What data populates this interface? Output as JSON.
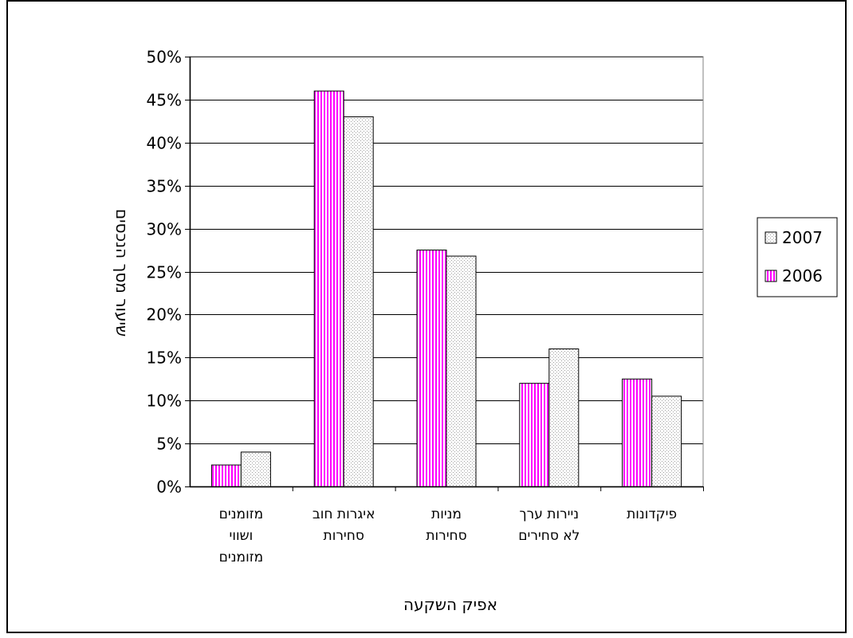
{
  "chart_data": {
    "type": "bar",
    "categories": [
      [
        "מזומנים",
        "ושווי",
        "מזומנים"
      ],
      [
        "איגרות חוב",
        "סחירות"
      ],
      [
        "מניות",
        "סחירות"
      ],
      [
        "ניירות ערך",
        "לא סחירים"
      ],
      [
        "פיקדונות"
      ]
    ],
    "series": [
      {
        "name": "2006",
        "values": [
          2.5,
          46,
          27.5,
          12,
          12.5
        ],
        "color": "#ff00ff",
        "pattern": "vertical-stripes"
      },
      {
        "name": "2007",
        "values": [
          4,
          43,
          26.8,
          16,
          10.5
        ],
        "color": "#d8d8d8",
        "pattern": "dotted"
      }
    ],
    "yticks": [
      "0%",
      "5%",
      "10%",
      "15%",
      "20%",
      "25%",
      "30%",
      "35%",
      "40%",
      "45%",
      "50%"
    ],
    "ylim": [
      0,
      50
    ],
    "ylabel": "שיעור מסך הנכסים",
    "xlabel": "אפיק השקעה",
    "legend": [
      "2007",
      "2006"
    ],
    "legend_position": "right",
    "grid": true
  }
}
